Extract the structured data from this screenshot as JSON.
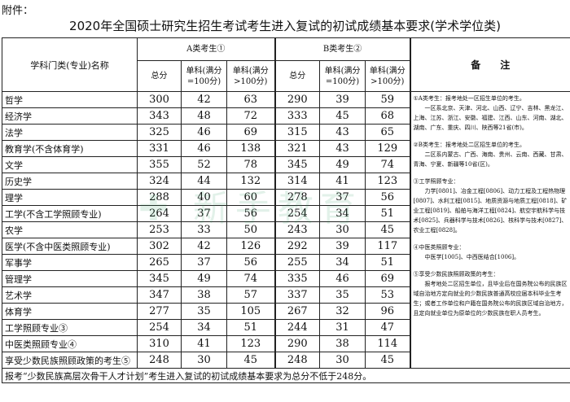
{
  "attachment_label": "附件：",
  "title": "2020年全国硕士研究生招生考试考生进入复试的初试成绩基本要求(学术学位类)",
  "header": {
    "subject": "学科门类(专业)名称",
    "group_a": "A类考生①",
    "group_b": "B类考生②",
    "total": "总分",
    "single_100": "单科(满分=100分)",
    "single_gt100": "单科(满分>100分)",
    "notes": "备　　注"
  },
  "rows": [
    [
      "哲学",
      "300",
      "42",
      "63",
      "290",
      "39",
      "59"
    ],
    [
      "经济学",
      "343",
      "48",
      "72",
      "333",
      "45",
      "68"
    ],
    [
      "法学",
      "325",
      "46",
      "69",
      "315",
      "43",
      "65"
    ],
    [
      "教育学(不含体育学)",
      "331",
      "46",
      "138",
      "321",
      "43",
      "129"
    ],
    [
      "文学",
      "355",
      "52",
      "78",
      "345",
      "49",
      "74"
    ],
    [
      "历史学",
      "324",
      "44",
      "132",
      "314",
      "41",
      "123"
    ],
    [
      "理学",
      "288",
      "40",
      "60",
      "278",
      "37",
      "56"
    ],
    [
      "工学(不含工学照顾专业)",
      "264",
      "37",
      "56",
      "254",
      "34",
      "51"
    ],
    [
      "农学",
      "253",
      "33",
      "50",
      "243",
      "30",
      "45"
    ],
    [
      "医学(不含中医类照顾专业)",
      "302",
      "42",
      "126",
      "292",
      "39",
      "117"
    ],
    [
      "军事学",
      "265",
      "37",
      "56",
      "255",
      "34",
      "51"
    ],
    [
      "管理学",
      "345",
      "49",
      "74",
      "335",
      "46",
      "69"
    ],
    [
      "艺术学",
      "347",
      "38",
      "57",
      "337",
      "35",
      "53"
    ],
    [
      "体育学",
      "277",
      "35",
      "105",
      "267",
      "32",
      "96"
    ],
    [
      "工学照顾专业③",
      "254",
      "34",
      "51",
      "244",
      "31",
      "47"
    ],
    [
      "中医类照顾专业④",
      "310",
      "41",
      "123",
      "290",
      "38",
      "114"
    ],
    [
      "享受少数民族照顾政策的考生⑤",
      "248",
      "30",
      "45",
      "248",
      "30",
      "45"
    ]
  ],
  "notes": [
    {
      "head": "①A类考生：报考地处一区招生单位的考生。",
      "body": "一区系北京、天津、河北、山西、辽宁、吉林、黑龙江、上海、江苏、浙江、安徽、福建、江西、山东、河南、湖北、湖南、广东、重庆、四川、陕西等21省(市)。"
    },
    {
      "head": "②B类考生：报考地处二区招生单位的考生。",
      "body": "二区系内蒙古、广西、海南、贵州、云南、西藏、甘肃、青海、宁夏、新疆等10省(区)。"
    },
    {
      "head": "③工学照顾专业：",
      "body": "力学[0801]、冶金工程[0806]、动力工程及工程热物理[0807]、水利工程[0815]、地质资源与地质工程[0818]、矿业工程[0819]、船舶与海洋工程[0824]、航空宇航科学与技术[0825]、兵器科学与技术[0826]、核科学与技术[0827]、农业工程[0828]。"
    },
    {
      "head": "④中医类照顾专业：",
      "body": "中医学[1005]、中西医结合[1006]。"
    },
    {
      "head": "⑤享受少数民族照顾政策的考生：",
      "body": "报考地处二区招生单位，且毕业后在国务院公布的民族区域自治地方定向就业的少数民族普通高校应届本科毕业生考生；或者工作单位和户籍在国务院公布的民族区域自治地方，且定向就业单位为原单位的少数民族在职人员考生。"
    }
  ],
  "footer": "报考“少数民族高层次骨干人才计划”考生进入复试的初试成绩基本要求为总分不低于248分。",
  "watermark": "新手教育"
}
